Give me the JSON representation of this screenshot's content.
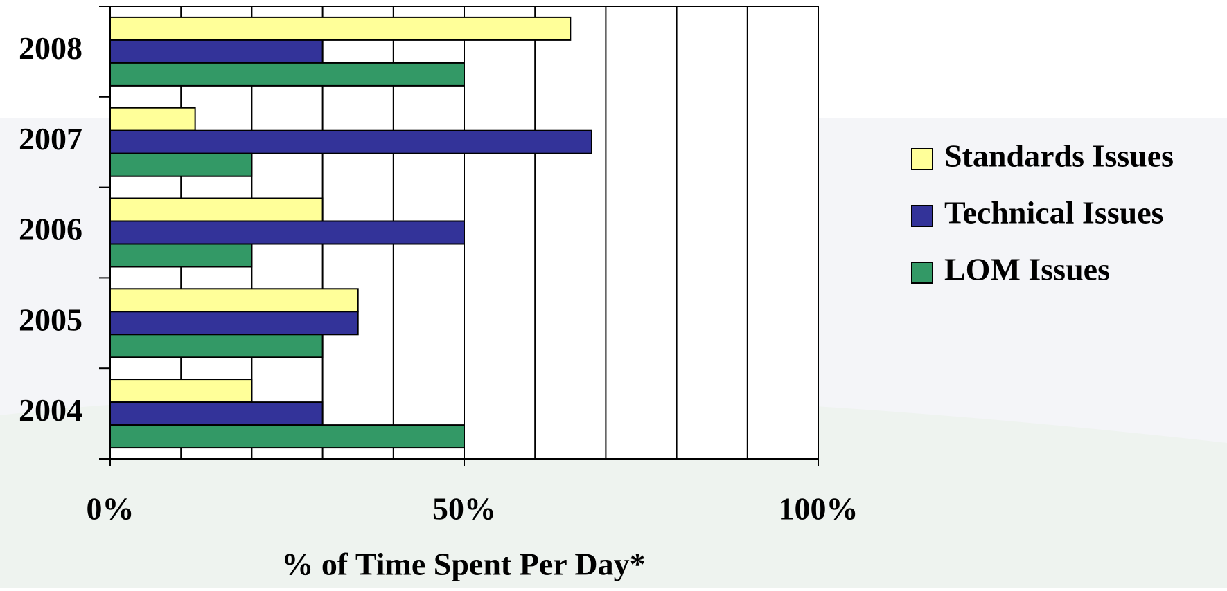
{
  "chart_data": {
    "type": "bar",
    "orientation": "horizontal",
    "categories": [
      "2008",
      "2007",
      "2006",
      "2005",
      "2004"
    ],
    "series": [
      {
        "name": "Standards Issues",
        "color": "#ffff99",
        "values": [
          65,
          12,
          30,
          35,
          20
        ]
      },
      {
        "name": "Technical Issues",
        "color": "#333399",
        "values": [
          30,
          68,
          50,
          35,
          30
        ]
      },
      {
        "name": "LOM Issues",
        "color": "#339966",
        "values": [
          50,
          20,
          20,
          30,
          50
        ]
      }
    ],
    "xlim": [
      0,
      100
    ],
    "xticks": [
      {
        "value": 0,
        "label": "0%"
      },
      {
        "value": 50,
        "label": "50%"
      },
      {
        "value": 100,
        "label": "100%"
      }
    ],
    "xgrid": [
      10,
      20,
      30,
      40,
      50,
      60,
      70,
      80,
      90
    ],
    "x_label": "% of Time Spent Per Day*",
    "grid": true,
    "legend": "right"
  }
}
